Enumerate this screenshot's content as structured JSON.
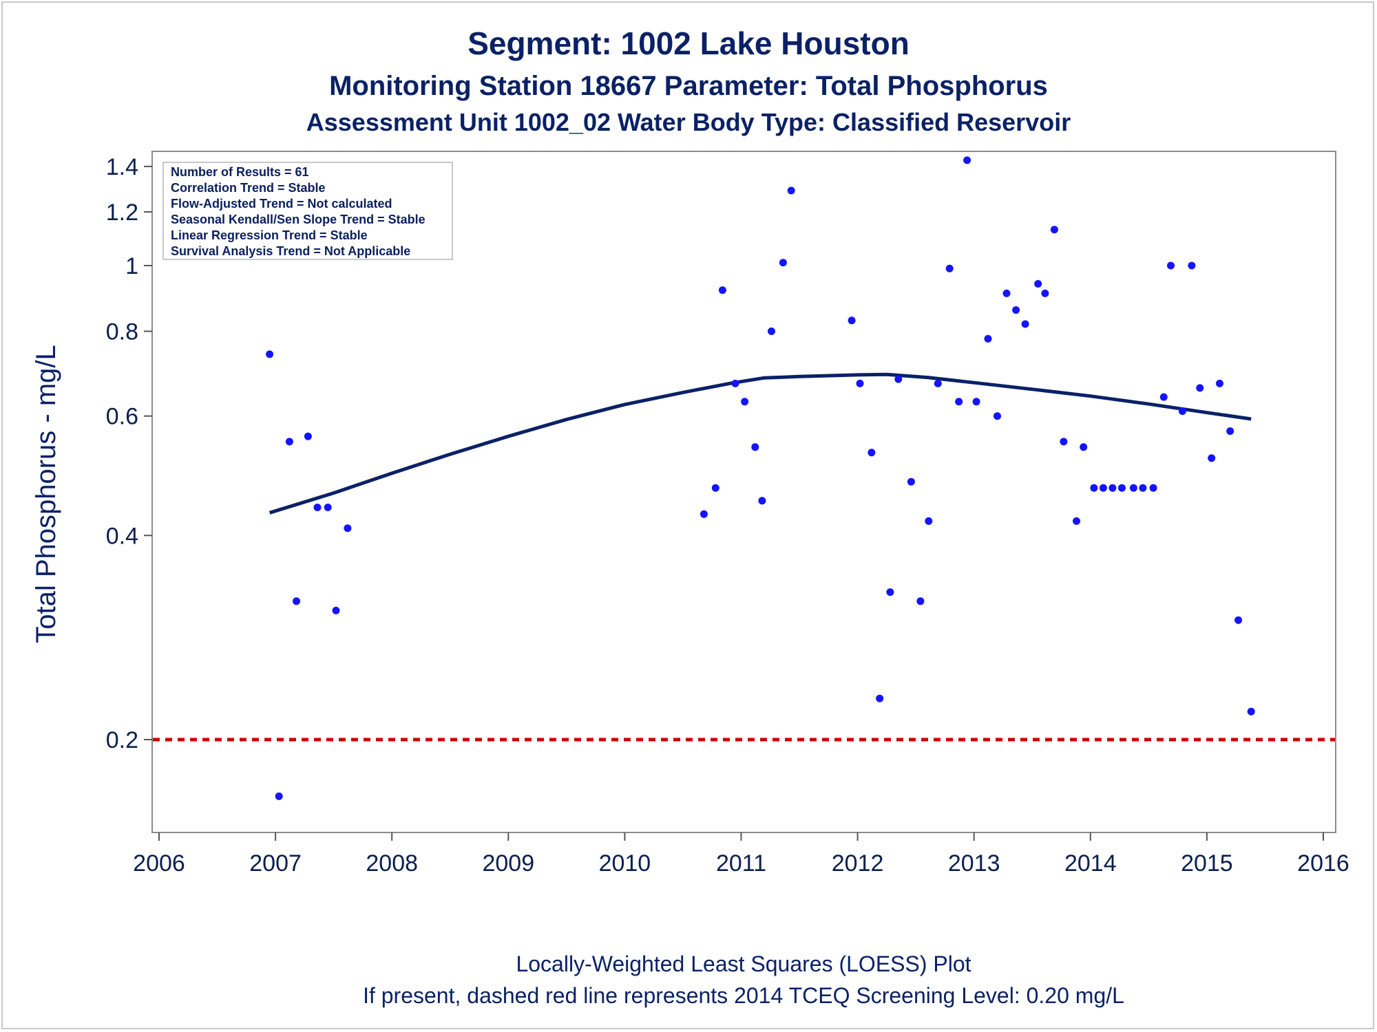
{
  "titles": {
    "line1": "Segment: 1002  Lake Houston",
    "line2": "Monitoring Station 18667 Parameter: Total Phosphorus",
    "line3": "Assessment Unit 1002_02   Water Body Type: Classified Reservoir"
  },
  "stats_box": [
    "Number of Results = 61",
    "Correlation Trend = Stable",
    "Flow-Adjusted Trend = Not calculated",
    "Seasonal Kendall/Sen Slope Trend = Stable",
    "Linear Regression Trend = Stable",
    "Survival Analysis Trend = Not Applicable"
  ],
  "footnotes": {
    "line1": "Locally-Weighted Least Squares (LOESS) Plot",
    "line2": "If present, dashed red line represents 2014 TCEQ Screening Level: 0.20 mg/L"
  },
  "colors": {
    "points": "#1414ff",
    "loess": "#0a2166",
    "screening_line": "#cc0000",
    "text": "#0a2166"
  },
  "chart_data": {
    "type": "scatter",
    "ylabel": "Total Phosphorus - mg/L",
    "xlabel": "",
    "y_scale": "log",
    "xlim": [
      2006,
      2016
    ],
    "ylim": [
      0.165,
      1.42
    ],
    "x_ticks": [
      "2006",
      "2007",
      "2008",
      "2009",
      "2010",
      "2011",
      "2012",
      "2013",
      "2014",
      "2015",
      "2016"
    ],
    "y_ticks": [
      "0.2",
      "0.4",
      "0.6",
      "0.8",
      "1",
      "1.2",
      "1.4"
    ],
    "grid": false,
    "screening_level": 0.2,
    "series": [
      {
        "type": "scatter",
        "points": [
          [
            2006.95,
            0.74
          ],
          [
            2007.03,
            0.165
          ],
          [
            2007.12,
            0.55
          ],
          [
            2007.18,
            0.32
          ],
          [
            2007.28,
            0.56
          ],
          [
            2007.36,
            0.44
          ],
          [
            2007.45,
            0.44
          ],
          [
            2007.52,
            0.31
          ],
          [
            2007.62,
            0.41
          ],
          [
            2010.68,
            0.43
          ],
          [
            2010.78,
            0.47
          ],
          [
            2010.84,
            0.92
          ],
          [
            2010.95,
            0.67
          ],
          [
            2011.03,
            0.63
          ],
          [
            2011.12,
            0.54
          ],
          [
            2011.18,
            0.45
          ],
          [
            2011.26,
            0.8
          ],
          [
            2011.36,
            1.01
          ],
          [
            2011.43,
            1.29
          ],
          [
            2011.95,
            0.83
          ],
          [
            2012.02,
            0.67
          ],
          [
            2012.12,
            0.53
          ],
          [
            2012.19,
            0.23
          ],
          [
            2012.28,
            0.33
          ],
          [
            2012.35,
            0.68
          ],
          [
            2012.46,
            0.48
          ],
          [
            2012.54,
            0.32
          ],
          [
            2012.61,
            0.42
          ],
          [
            2012.69,
            0.67
          ],
          [
            2012.79,
            0.99
          ],
          [
            2012.87,
            0.63
          ],
          [
            2012.94,
            1.43
          ],
          [
            2013.02,
            0.63
          ],
          [
            2013.12,
            0.78
          ],
          [
            2013.2,
            0.6
          ],
          [
            2013.28,
            0.91
          ],
          [
            2013.36,
            0.86
          ],
          [
            2013.44,
            0.82
          ],
          [
            2013.55,
            0.94
          ],
          [
            2013.61,
            0.91
          ],
          [
            2013.69,
            1.13
          ],
          [
            2013.77,
            0.55
          ],
          [
            2013.88,
            0.42
          ],
          [
            2013.94,
            0.54
          ],
          [
            2014.03,
            0.47
          ],
          [
            2014.11,
            0.47
          ],
          [
            2014.19,
            0.47
          ],
          [
            2014.27,
            0.47
          ],
          [
            2014.37,
            0.47
          ],
          [
            2014.45,
            0.47
          ],
          [
            2014.54,
            0.47
          ],
          [
            2014.63,
            0.64
          ],
          [
            2014.69,
            1.0
          ],
          [
            2014.79,
            0.61
          ],
          [
            2014.87,
            1.0
          ],
          [
            2014.94,
            0.66
          ],
          [
            2015.04,
            0.52
          ],
          [
            2015.11,
            0.67
          ],
          [
            2015.2,
            0.57
          ],
          [
            2015.27,
            0.3
          ],
          [
            2015.38,
            0.22
          ]
        ]
      },
      {
        "type": "line",
        "points": [
          [
            2006.95,
            0.432
          ],
          [
            2007.5,
            0.462
          ],
          [
            2008.0,
            0.494
          ],
          [
            2008.5,
            0.527
          ],
          [
            2009.0,
            0.56
          ],
          [
            2009.5,
            0.593
          ],
          [
            2010.0,
            0.624
          ],
          [
            2010.5,
            0.65
          ],
          [
            2010.9,
            0.67
          ],
          [
            2011.2,
            0.683
          ],
          [
            2011.5,
            0.686
          ],
          [
            2012.0,
            0.69
          ],
          [
            2012.25,
            0.691
          ],
          [
            2012.6,
            0.684
          ],
          [
            2013.0,
            0.672
          ],
          [
            2013.5,
            0.657
          ],
          [
            2014.0,
            0.642
          ],
          [
            2014.5,
            0.625
          ],
          [
            2015.0,
            0.607
          ],
          [
            2015.38,
            0.594
          ]
        ]
      }
    ]
  }
}
